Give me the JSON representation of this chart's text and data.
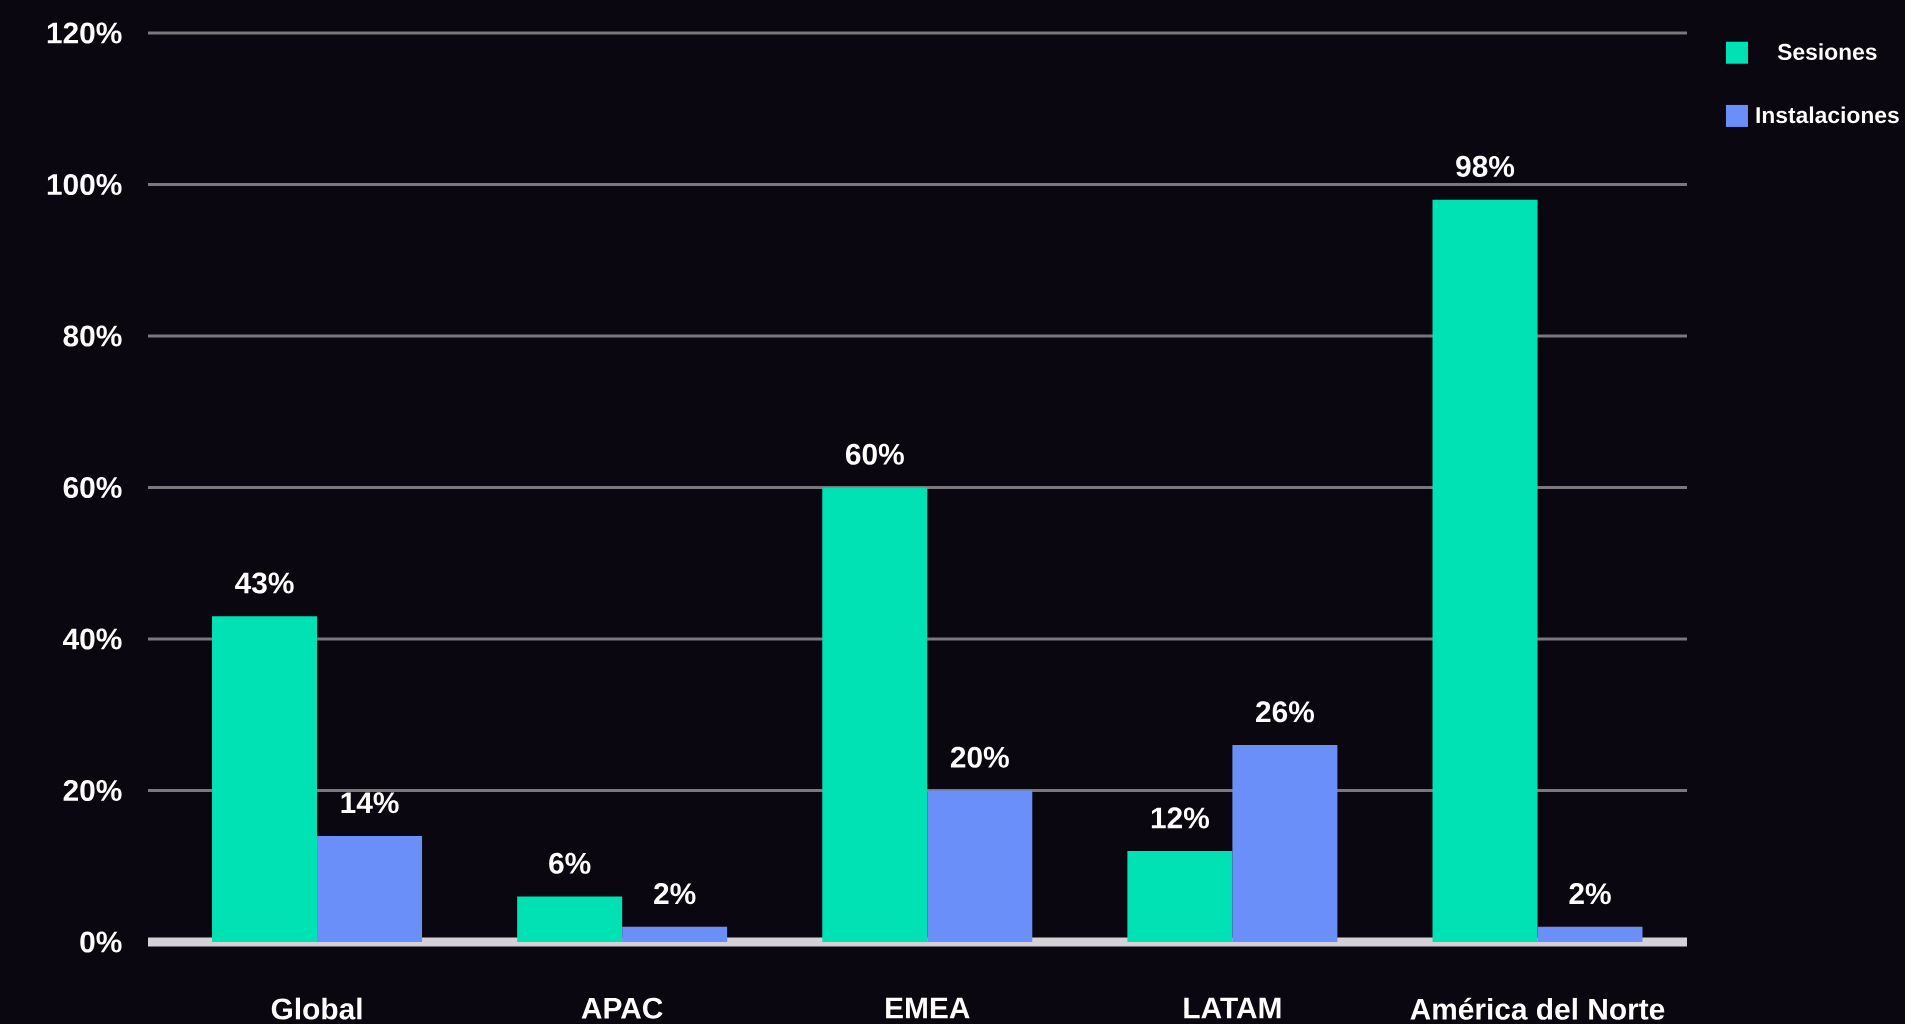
{
  "chart_data": {
    "type": "bar",
    "categories": [
      "Global",
      "APAC",
      "EMEA",
      "LATAM",
      "América del Norte"
    ],
    "series": [
      {
        "name": "Sesiones",
        "color": "#00e2b4",
        "values": [
          43,
          6,
          60,
          12,
          98
        ],
        "value_labels": [
          "43%",
          "6%",
          "60%",
          "12%",
          "98%"
        ]
      },
      {
        "name": "Instalaciones",
        "color": "#6b8ff8",
        "values": [
          14,
          2,
          20,
          26,
          2
        ],
        "value_labels": [
          "14%",
          "2%",
          "20%",
          "26%",
          "2%"
        ]
      }
    ],
    "ylim": [
      0,
      120
    ],
    "yticks": [
      {
        "value": 0,
        "label": "0%"
      },
      {
        "value": 20,
        "label": "20%"
      },
      {
        "value": 40,
        "label": "40%"
      },
      {
        "value": 60,
        "label": "60%"
      },
      {
        "value": 80,
        "label": "80%"
      },
      {
        "value": 100,
        "label": "100%"
      },
      {
        "value": 120,
        "label": "120%"
      }
    ],
    "grid": "y",
    "legend": "top right"
  }
}
